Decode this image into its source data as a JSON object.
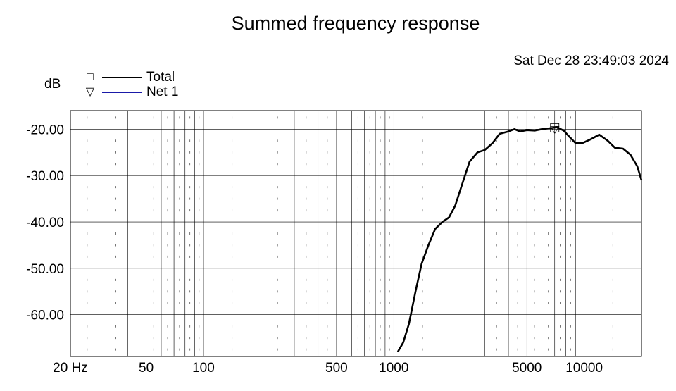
{
  "chart_data": {
    "type": "line",
    "title": "Summed frequency response",
    "timestamp": "Sat Dec 28 23:49:03 2024",
    "ylabel": "dB",
    "xscale": "log",
    "xlim": [
      20,
      20000
    ],
    "ylim": [
      -69,
      -16
    ],
    "grid": true,
    "legend_position": "top-left",
    "x_ticks": [
      {
        "value": 20,
        "label": "20 Hz"
      },
      {
        "value": 50,
        "label": "50"
      },
      {
        "value": 100,
        "label": "100"
      },
      {
        "value": 500,
        "label": "500"
      },
      {
        "value": 1000,
        "label": "1000"
      },
      {
        "value": 5000,
        "label": "5000"
      },
      {
        "value": 10000,
        "label": "10000"
      }
    ],
    "y_ticks": [
      {
        "value": -20,
        "label": "-20.00"
      },
      {
        "value": -30,
        "label": "-30.00"
      },
      {
        "value": -40,
        "label": "-40.00"
      },
      {
        "value": -50,
        "label": "-50.00"
      },
      {
        "value": -60,
        "label": "-60.00"
      }
    ],
    "series": [
      {
        "name": "Total",
        "color": "#000000",
        "marker": "square",
        "x": [
          1050,
          1120,
          1200,
          1300,
          1400,
          1520,
          1650,
          1800,
          1950,
          2100,
          2300,
          2500,
          2750,
          3000,
          3300,
          3600,
          4000,
          4300,
          4600,
          5000,
          5500,
          6000,
          6600,
          7200,
          7800,
          8300,
          9000,
          9800,
          10800,
          12000,
          13300,
          14500,
          16000,
          17500,
          19000,
          20000
        ],
        "y": [
          -68,
          -66,
          -62,
          -55,
          -49,
          -45,
          -41.5,
          -40,
          -39,
          -36.5,
          -31.5,
          -27,
          -25,
          -24.5,
          -23,
          -21,
          -20.5,
          -20,
          -20.5,
          -20.2,
          -20.3,
          -20,
          -19.8,
          -19.6,
          -20.3,
          -21.5,
          -23,
          -23,
          -22.2,
          -21.2,
          -22.5,
          -24,
          -24.2,
          -25.5,
          -28,
          -31
        ]
      },
      {
        "name": "Net 1",
        "color": "#1a1aa8",
        "marker": "triangle",
        "x": [
          1050,
          1120,
          1200,
          1300,
          1400,
          1520,
          1650,
          1800,
          1950,
          2100,
          2300,
          2500,
          2750,
          3000,
          3300,
          3600,
          4000,
          4300,
          4600,
          5000,
          5500,
          6000,
          6600,
          7200,
          7800,
          8300,
          9000,
          9800,
          10800,
          12000,
          13300,
          14500,
          16000,
          17500,
          19000,
          20000
        ],
        "y": [
          -68,
          -66,
          -62,
          -55,
          -49,
          -45,
          -41.5,
          -40,
          -39,
          -36.5,
          -31.5,
          -27,
          -25,
          -24.5,
          -23,
          -21,
          -20.5,
          -20,
          -20.5,
          -20.2,
          -20.3,
          -20,
          -19.8,
          -19.6,
          -20.3,
          -21.5,
          -23,
          -23,
          -22.2,
          -21.2,
          -22.5,
          -24,
          -24.2,
          -25.5,
          -28,
          -31
        ]
      }
    ],
    "marker_points": [
      {
        "series": "Total",
        "x": 7000,
        "y": -19.7
      },
      {
        "series": "Net 1",
        "x": 7000,
        "y": -20.0
      }
    ]
  }
}
